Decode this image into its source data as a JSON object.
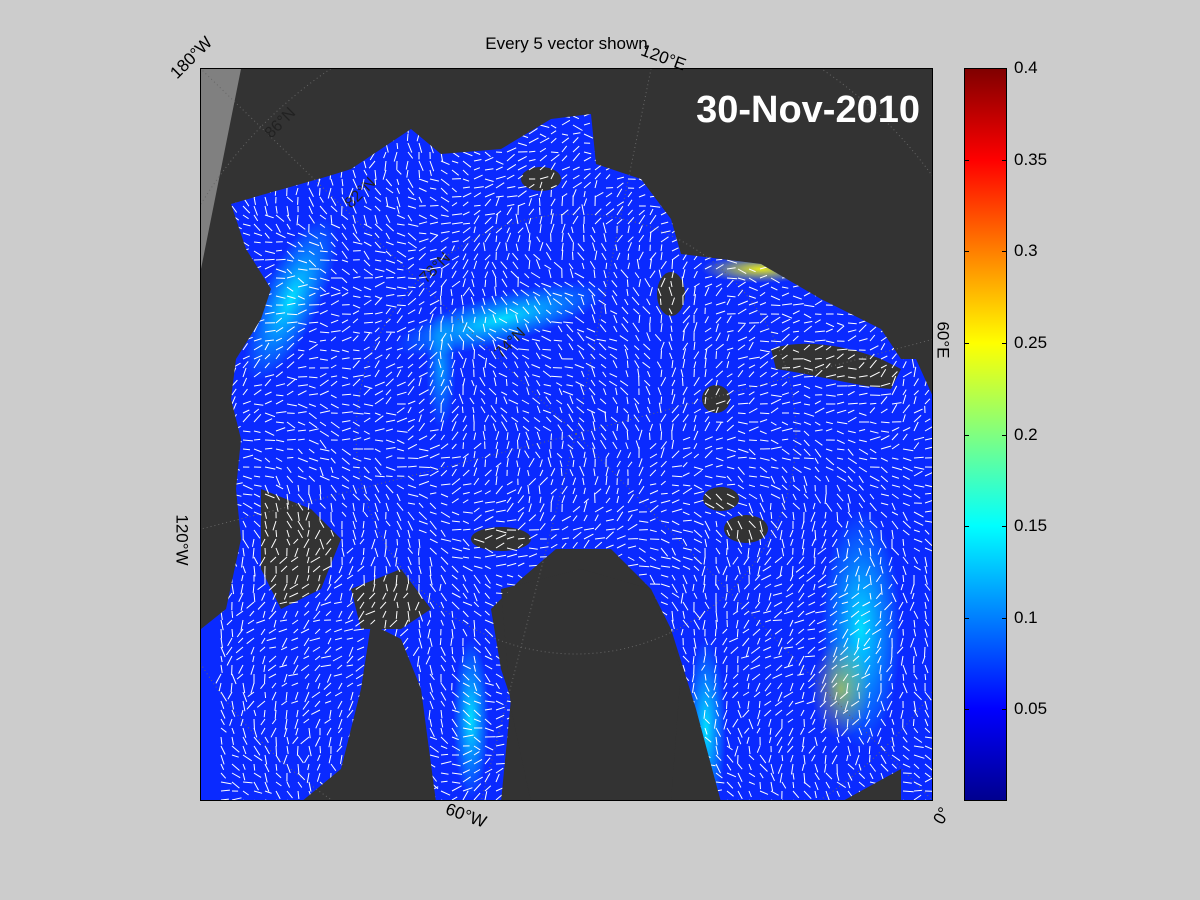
{
  "figure": {
    "title": "Every 5 vector shown",
    "date_stamp": "30-Nov-2010"
  },
  "longitude_labels": {
    "lon_180w": "180°W",
    "lon_120e": "120°E",
    "lon_60e": "60°E",
    "lon_120w": "120°W",
    "lon_60w": "60°W",
    "lon_0": "0°"
  },
  "latitude_labels": [
    "86°N",
    "82°N",
    "78°N",
    "74°N"
  ],
  "colorbar": {
    "colormap": "jet",
    "min": 0,
    "max": 0.4,
    "ticks": [
      "0.05",
      "0.1",
      "0.15",
      "0.2",
      "0.25",
      "0.3",
      "0.35",
      "0.4"
    ],
    "tick_values": [
      0.05,
      0.1,
      0.15,
      0.2,
      0.25,
      0.3,
      0.35,
      0.4
    ]
  },
  "colors": {
    "land": "#333333",
    "land_outer": "#808080",
    "ocean_low": "#0a2aff",
    "ocean_mid": "#1e6cff",
    "vectors": "#ffffff",
    "background": "#cccccc"
  }
}
